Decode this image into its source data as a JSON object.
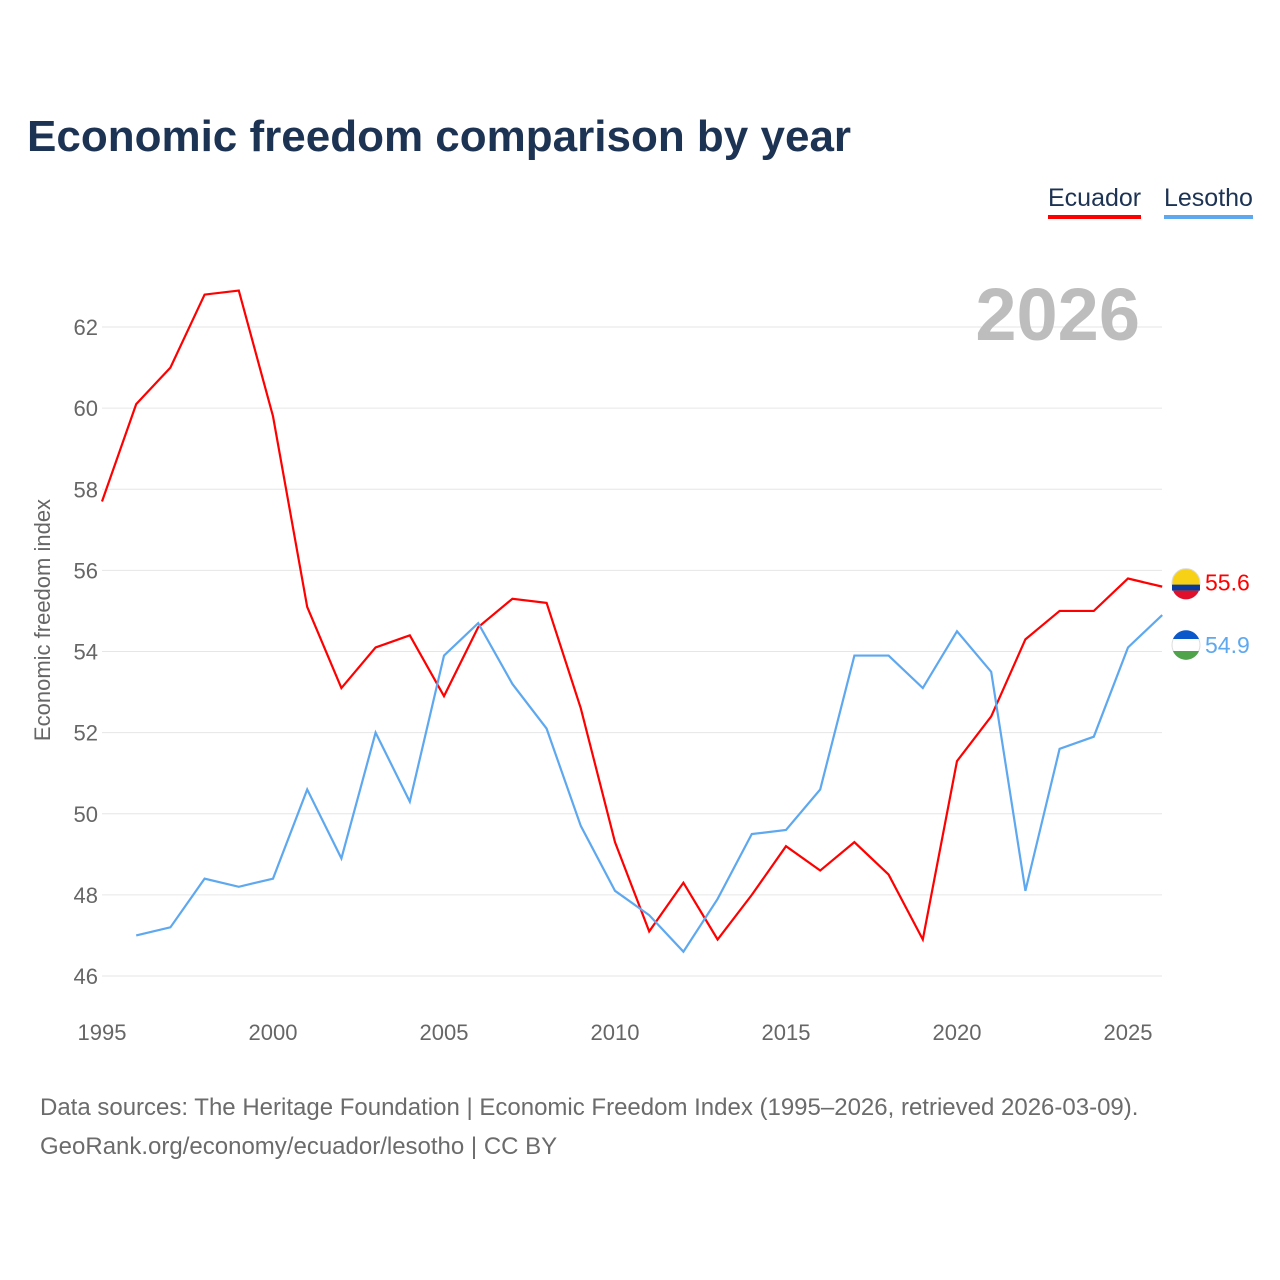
{
  "title": "Economic freedom comparison by year",
  "footer": {
    "line1": "Data sources: The Heritage Foundation | Economic Freedom Index (1995–2026, retrieved 2026-03-09).",
    "line2": "GeoRank.org/economy/ecuador/lesotho | CC BY"
  },
  "chart_data": {
    "type": "line",
    "title": "Economic freedom comparison by year",
    "xlabel": "",
    "ylabel": "Economic freedom index",
    "year_label": "2026",
    "xlim": [
      1995,
      2026
    ],
    "ylim": [
      45.3,
      63.5
    ],
    "xticks": [
      1995,
      2000,
      2005,
      2010,
      2015,
      2020,
      2025
    ],
    "yticks": [
      46,
      48,
      50,
      52,
      54,
      56,
      58,
      60,
      62
    ],
    "grid": true,
    "legend_position": "top-right",
    "series": [
      {
        "name": "Ecuador",
        "color": "#ff0000",
        "end_label": "55.6",
        "x": [
          1995,
          1996,
          1997,
          1998,
          1999,
          2000,
          2001,
          2002,
          2003,
          2004,
          2005,
          2006,
          2007,
          2008,
          2009,
          2010,
          2011,
          2012,
          2013,
          2014,
          2015,
          2016,
          2017,
          2018,
          2019,
          2020,
          2021,
          2022,
          2023,
          2024,
          2025,
          2026
        ],
        "values": [
          57.7,
          60.1,
          61.0,
          62.8,
          62.9,
          59.8,
          55.1,
          53.1,
          54.1,
          54.4,
          52.9,
          54.6,
          55.3,
          55.2,
          52.6,
          49.3,
          47.1,
          48.3,
          46.9,
          48.0,
          49.2,
          48.6,
          49.3,
          48.5,
          46.9,
          51.3,
          52.4,
          54.3,
          55.0,
          55.0,
          55.8,
          55.6
        ]
      },
      {
        "name": "Lesotho",
        "color": "#5ea8ef",
        "end_label": "54.9",
        "x": [
          1996,
          1997,
          1998,
          1999,
          2000,
          2001,
          2002,
          2003,
          2004,
          2005,
          2006,
          2007,
          2008,
          2009,
          2010,
          2011,
          2012,
          2013,
          2014,
          2015,
          2016,
          2017,
          2018,
          2019,
          2020,
          2021,
          2022,
          2023,
          2024,
          2025,
          2026
        ],
        "values": [
          47.0,
          47.2,
          48.4,
          48.2,
          48.4,
          50.6,
          48.9,
          52.0,
          50.3,
          53.9,
          54.7,
          53.2,
          52.1,
          49.7,
          48.1,
          47.5,
          46.6,
          47.9,
          49.5,
          49.6,
          50.6,
          53.9,
          53.9,
          53.1,
          54.5,
          53.5,
          48.1,
          51.6,
          51.9,
          54.1,
          54.9
        ]
      }
    ]
  }
}
